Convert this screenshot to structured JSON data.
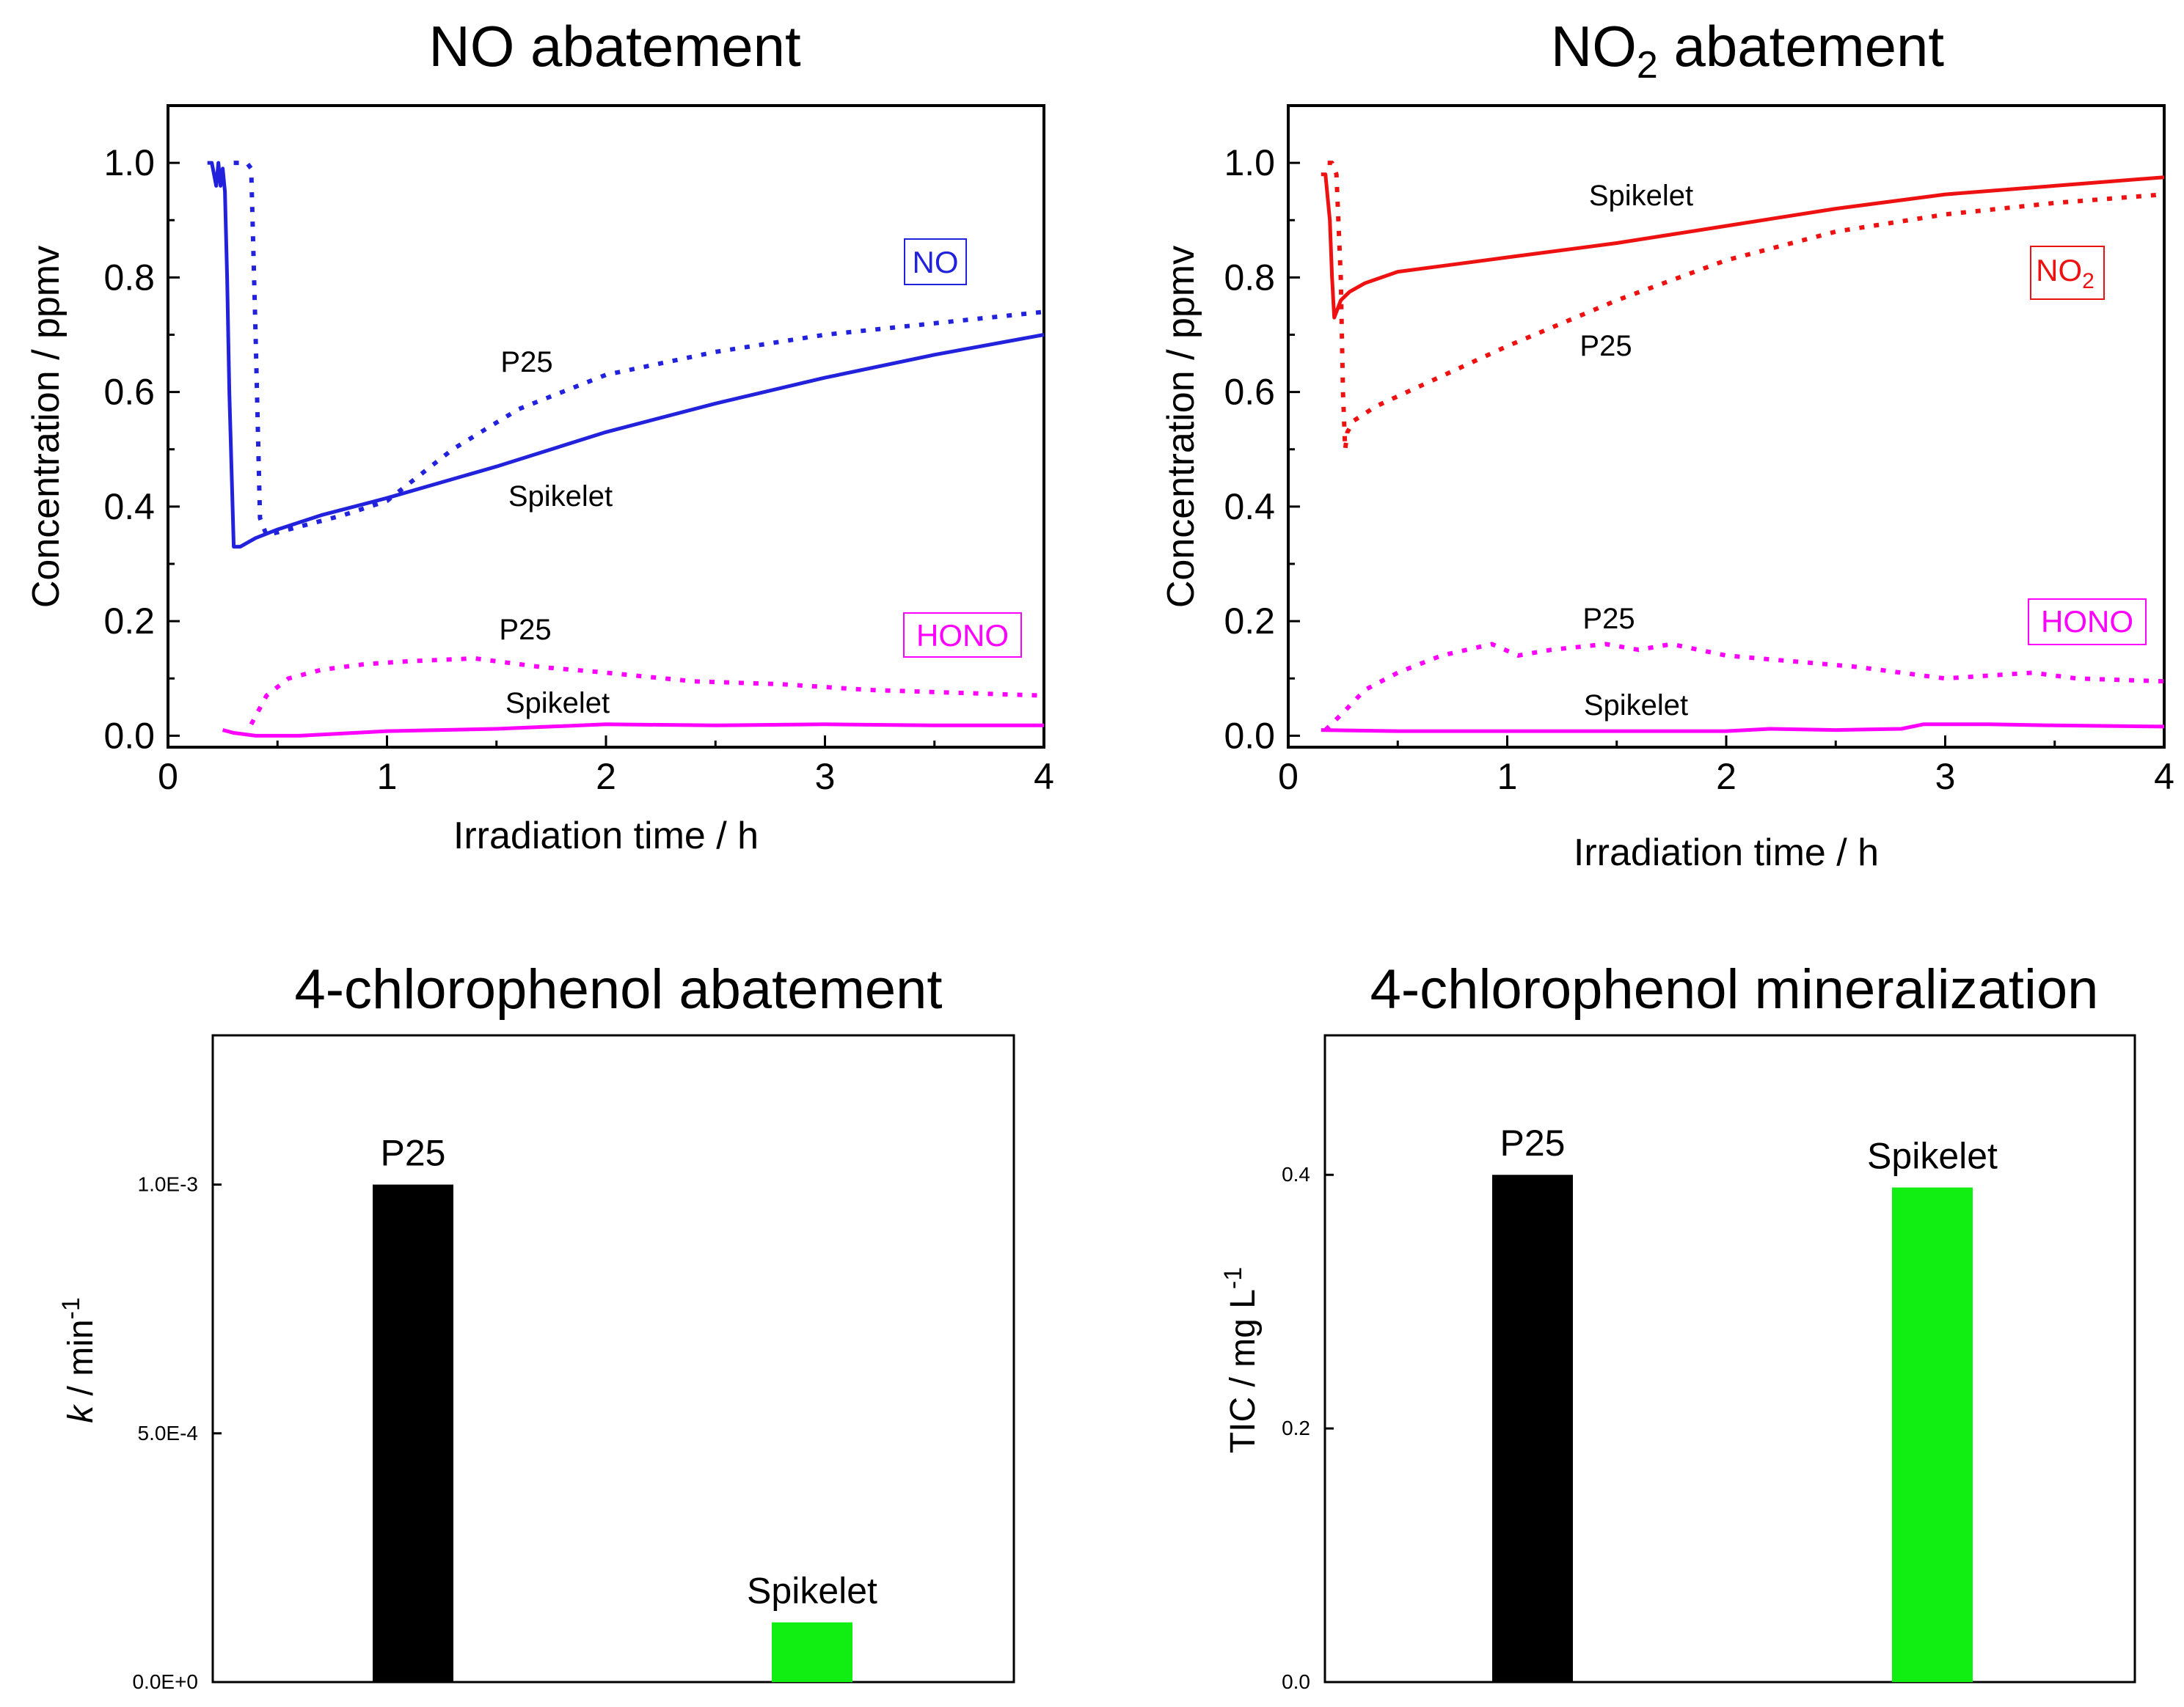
{
  "chart_data": [
    {
      "type": "line",
      "title": "NO abatement",
      "xlabel": "Irradiation time / h",
      "ylabel": "Concentration / ppmv",
      "xlim": [
        0,
        4
      ],
      "ylim": [
        -0.02,
        1.1
      ],
      "xticks": [
        "0",
        "1",
        "2",
        "3",
        "4"
      ],
      "yticks": [
        "0.0",
        "0.2",
        "0.4",
        "0.6",
        "0.8",
        "1.0"
      ],
      "legend_boxes": [
        {
          "text": "NO",
          "color": "#2222dd"
        },
        {
          "text": "HONO",
          "color": "#ff00ff"
        }
      ],
      "annotations": [
        {
          "text": "P25"
        },
        {
          "text": "Spikelet"
        },
        {
          "text": "P25"
        },
        {
          "text": "Spikelet"
        }
      ],
      "series": [
        {
          "name": "NO Spikelet",
          "color": "#2222dd",
          "style": "solid",
          "x": [
            0.18,
            0.2,
            0.22,
            0.23,
            0.24,
            0.25,
            0.26,
            0.27,
            0.28,
            0.3,
            0.33,
            0.4,
            0.5,
            0.7,
            1.0,
            1.5,
            2.0,
            2.5,
            3.0,
            3.5,
            4.0
          ],
          "y": [
            1.0,
            1.0,
            0.96,
            1.0,
            0.96,
            0.99,
            0.95,
            0.8,
            0.6,
            0.33,
            0.33,
            0.345,
            0.36,
            0.385,
            0.415,
            0.47,
            0.53,
            0.58,
            0.625,
            0.665,
            0.7
          ]
        },
        {
          "name": "NO P25",
          "color": "#2222dd",
          "style": "dotted",
          "x": [
            0.3,
            0.33,
            0.36,
            0.38,
            0.4,
            0.42,
            0.45,
            0.5,
            0.6,
            0.8,
            1.0,
            1.3,
            1.6,
            2.0,
            2.5,
            3.0,
            3.5,
            4.0
          ],
          "y": [
            1.0,
            1.0,
            1.0,
            0.99,
            0.7,
            0.38,
            0.35,
            0.355,
            0.365,
            0.385,
            0.41,
            0.5,
            0.57,
            0.63,
            0.67,
            0.7,
            0.72,
            0.74
          ]
        },
        {
          "name": "HONO Spikelet",
          "color": "#ff00ff",
          "style": "solid",
          "x": [
            0.25,
            0.3,
            0.4,
            0.6,
            1.0,
            1.5,
            2.0,
            2.5,
            3.0,
            3.5,
            4.0
          ],
          "y": [
            0.01,
            0.005,
            0.0,
            0.0,
            0.008,
            0.012,
            0.02,
            0.018,
            0.02,
            0.018,
            0.018
          ]
        },
        {
          "name": "HONO P25",
          "color": "#ff00ff",
          "style": "dotted",
          "x": [
            0.38,
            0.45,
            0.55,
            0.7,
            0.9,
            1.1,
            1.4,
            1.7,
            2.0,
            2.4,
            2.8,
            3.2,
            3.6,
            4.0
          ],
          "y": [
            0.02,
            0.07,
            0.1,
            0.115,
            0.125,
            0.13,
            0.135,
            0.12,
            0.11,
            0.095,
            0.09,
            0.08,
            0.075,
            0.07
          ]
        }
      ]
    },
    {
      "type": "line",
      "title": "NO2 abatement",
      "xlabel": "Irradiation time / h",
      "ylabel": "Concentration / ppmv",
      "xlim": [
        0,
        4
      ],
      "ylim": [
        -0.02,
        1.1
      ],
      "xticks": [
        "0",
        "1",
        "2",
        "3",
        "4"
      ],
      "yticks": [
        "0.0",
        "0.2",
        "0.4",
        "0.6",
        "0.8",
        "1.0"
      ],
      "legend_boxes": [
        {
          "text": "NO2",
          "color": "#ee1111"
        },
        {
          "text": "HONO",
          "color": "#ff00ff"
        }
      ],
      "annotations": [
        {
          "text": "Spikelet"
        },
        {
          "text": "P25"
        },
        {
          "text": "P25"
        },
        {
          "text": "Spikelet"
        }
      ],
      "series": [
        {
          "name": "NO2 Spikelet",
          "color": "#ee1111",
          "style": "solid",
          "x": [
            0.15,
            0.17,
            0.19,
            0.2,
            0.21,
            0.22,
            0.24,
            0.28,
            0.35,
            0.5,
            0.7,
            1.0,
            1.5,
            2.0,
            2.5,
            3.0,
            3.5,
            4.0
          ],
          "y": [
            0.98,
            0.98,
            0.9,
            0.8,
            0.73,
            0.74,
            0.76,
            0.775,
            0.79,
            0.81,
            0.82,
            0.835,
            0.86,
            0.89,
            0.92,
            0.945,
            0.96,
            0.975
          ]
        },
        {
          "name": "NO2 P25",
          "color": "#ee1111",
          "style": "dotted",
          "x": [
            0.18,
            0.2,
            0.22,
            0.24,
            0.25,
            0.26,
            0.27,
            0.3,
            0.4,
            0.6,
            1.0,
            1.5,
            2.0,
            2.5,
            3.0,
            3.5,
            4.0
          ],
          "y": [
            1.0,
            1.0,
            0.98,
            0.8,
            0.6,
            0.5,
            0.53,
            0.55,
            0.575,
            0.61,
            0.68,
            0.76,
            0.83,
            0.88,
            0.91,
            0.93,
            0.945
          ]
        },
        {
          "name": "HONO Spikelet",
          "color": "#ff00ff",
          "style": "solid",
          "x": [
            0.15,
            0.5,
            1.0,
            1.5,
            2.0,
            2.2,
            2.5,
            2.8,
            2.9,
            3.2,
            3.5,
            4.0
          ],
          "y": [
            0.01,
            0.008,
            0.008,
            0.008,
            0.008,
            0.012,
            0.01,
            0.012,
            0.02,
            0.02,
            0.018,
            0.016
          ]
        },
        {
          "name": "HONO P25",
          "color": "#ff00ff",
          "style": "dotted",
          "x": [
            0.17,
            0.25,
            0.35,
            0.5,
            0.7,
            0.93,
            1.05,
            1.2,
            1.45,
            1.6,
            1.75,
            2.0,
            2.3,
            2.6,
            3.0,
            3.4,
            3.6,
            4.0
          ],
          "y": [
            0.01,
            0.04,
            0.08,
            0.11,
            0.14,
            0.16,
            0.14,
            0.15,
            0.16,
            0.15,
            0.16,
            0.14,
            0.13,
            0.12,
            0.1,
            0.11,
            0.1,
            0.095
          ]
        }
      ]
    },
    {
      "type": "bar",
      "title": "4-chlorophenol abatement",
      "ylabel_italic": "k",
      "ylabel_rest": " / min",
      "ylabel_sup": "-1",
      "ylim": [
        0,
        0.0013
      ],
      "yticks": [
        {
          "value": 0,
          "label": "0.0E+0"
        },
        {
          "value": 0.0005,
          "label": "5.0E-4"
        },
        {
          "value": 0.001,
          "label": "1.0E-3"
        }
      ],
      "categories": [
        "P25",
        "Spikelet"
      ],
      "values": [
        0.001,
        0.00012
      ],
      "colors": [
        "#000000",
        "#11ee11"
      ]
    },
    {
      "type": "bar",
      "title": "4-chlorophenol mineralization",
      "ylabel": "TIC / mg L",
      "ylabel_sup": "-1",
      "ylim": [
        0,
        0.51
      ],
      "yticks": [
        {
          "value": 0,
          "label": "0.0"
        },
        {
          "value": 0.2,
          "label": "0.2"
        },
        {
          "value": 0.4,
          "label": "0.4"
        }
      ],
      "categories": [
        "P25",
        "Spikelet"
      ],
      "values": [
        0.4,
        0.39
      ],
      "colors": [
        "#000000",
        "#11ee11"
      ]
    }
  ]
}
